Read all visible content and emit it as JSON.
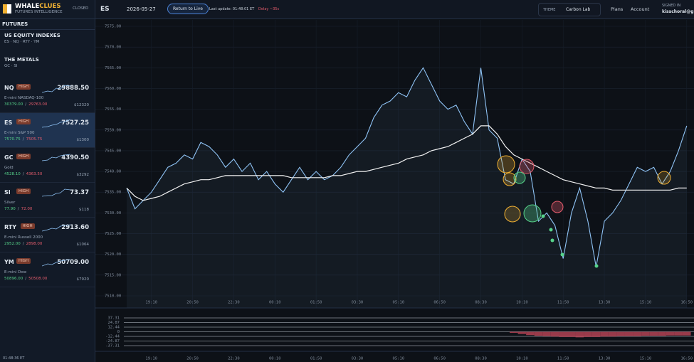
{
  "header": {
    "brand_a": "WHALE",
    "brand_b": "CLUES",
    "tagline": "FUTURES INTELLIGENCE",
    "status": "CLOSED",
    "symbol": "ES",
    "date": "2026-05-27",
    "return_button": "Return to Live",
    "last_update": "Last update: 01:48:01 ET",
    "delay": "Delay ~35s",
    "theme_label": "THEME",
    "theme": "Carbon Lab",
    "nav": [
      "Plans",
      "Account"
    ],
    "signed_in_label": "SIGNED IN",
    "user": "kisschoral@gmai"
  },
  "sidebar": {
    "section": "FUTURES",
    "groups": [
      {
        "title": "US EQUITY INDEXES",
        "symbols": "ES · NQ · RTY · YM"
      },
      {
        "title": "THE METALS",
        "symbols": "GC · SI"
      }
    ],
    "separator": "/",
    "tickers": [
      {
        "symbol": "NQ",
        "badge": "HIGH",
        "price": "29888.50",
        "name": "E-mini NASDAQ-100",
        "high": "30379.00",
        "low": "29763.00",
        "margin": "$12320"
      },
      {
        "symbol": "ES",
        "badge": "HIGH",
        "price": "7527.25",
        "name": "E-mini S&P 500",
        "high": "7570.75",
        "low": "7505.75",
        "margin": "$1300"
      },
      {
        "symbol": "GC",
        "badge": "HIGH",
        "price": "4390.50",
        "name": "Gold",
        "high": "4528.10",
        "low": "4363.50",
        "margin": "$3292"
      },
      {
        "symbol": "SI",
        "badge": "HIGH",
        "price": "73.37",
        "name": "Silver",
        "high": "77.90",
        "low": "72.00",
        "margin": "$118"
      },
      {
        "symbol": "RTY",
        "badge": "HIGH",
        "price": "2913.60",
        "name": "E-mini Russell 2000",
        "high": "2952.00",
        "low": "2898.00",
        "margin": "$1064"
      },
      {
        "symbol": "YM",
        "badge": "HIGH",
        "price": "50709.00",
        "name": "E-mini Dow",
        "high": "50896.00",
        "low": "50508.00",
        "margin": "$7920"
      }
    ],
    "clock": "01:48:36 ET"
  },
  "chart_data": [
    {
      "type": "line",
      "categories": [
        null,
        null,
        null,
        "19:10",
        null,
        null,
        null,
        null,
        "20:50",
        null,
        null,
        null,
        null,
        "22:30",
        null,
        null,
        null,
        null,
        "00:10",
        null,
        null,
        null,
        null,
        "01:50",
        null,
        null,
        null,
        null,
        "03:30",
        null,
        null,
        null,
        null,
        "05:10",
        null,
        null,
        null,
        null,
        "06:50",
        null,
        null,
        null,
        null,
        "08:30",
        null,
        null,
        null,
        null,
        "10:10",
        null,
        null,
        null,
        null,
        "11:50",
        null,
        null,
        null,
        null,
        "13:30",
        null,
        null,
        null,
        null,
        "15:10",
        null,
        null,
        null,
        null,
        "16:50"
      ],
      "series": [
        {
          "color": "#8fc3f5",
          "values": [
            7536,
            7531,
            7533,
            7535,
            7538,
            7541,
            7542,
            7544,
            7543,
            7547,
            7546,
            7544,
            7541,
            7543,
            7540,
            7542,
            7538,
            7540,
            7537,
            7535,
            7538,
            7541,
            7538,
            7540,
            7538,
            7539,
            7541,
            7544,
            7546,
            7548,
            7553,
            7556,
            7557,
            7559,
            7558,
            7562,
            7565,
            7561,
            7557,
            7555,
            7556,
            7552,
            7549,
            7565,
            7550,
            7548,
            7538,
            7537,
            7543,
            7540,
            7528,
            7530,
            7527,
            7519,
            7530,
            7536,
            7528,
            7517,
            7528,
            7530,
            7533,
            7537,
            7541,
            7540,
            7541,
            7537,
            7540,
            7545,
            7551
          ]
        },
        {
          "color": "#f2f2f2",
          "values": [
            7536,
            7534,
            7533,
            7533.5,
            7534,
            7535,
            7536,
            7537,
            7537.5,
            7538,
            7538,
            7538.5,
            7539,
            7539,
            7539,
            7539,
            7539,
            7539,
            7539,
            7539,
            7538.5,
            7538.5,
            7538.5,
            7538.5,
            7538.5,
            7539,
            7539,
            7539.5,
            7540,
            7540,
            7540.5,
            7541,
            7541.5,
            7542,
            7543,
            7543.5,
            7544,
            7545,
            7545.5,
            7546,
            7547,
            7548,
            7549,
            7551,
            7551,
            7549,
            7546,
            7544,
            7543,
            7542,
            7541,
            7540,
            7539,
            7538,
            7537.5,
            7537,
            7536.5,
            7536,
            7536,
            7535.5,
            7535.5,
            7535.5,
            7535.5,
            7535.5,
            7535.5,
            7535.5,
            7535.5,
            7536,
            7536
          ]
        }
      ],
      "ylim": [
        7509,
        7576
      ],
      "yticks": [
        {
          "value": 7510,
          "label": "7510.00"
        },
        {
          "value": 7515,
          "label": "7515.00"
        },
        {
          "value": 7520,
          "label": "7520.00"
        },
        {
          "value": 7525,
          "label": "7525.00"
        },
        {
          "value": 7530,
          "label": "7530.00"
        },
        {
          "value": 7535,
          "label": "7535.00"
        },
        {
          "value": 7540,
          "label": "7540.00"
        },
        {
          "value": 7545,
          "label": "7545.00"
        },
        {
          "value": 7550,
          "label": "7550.00"
        },
        {
          "value": 7555,
          "label": "7555.00"
        },
        {
          "value": 7560,
          "label": "7560.00"
        },
        {
          "value": 7565,
          "label": "7565.00"
        },
        {
          "value": 7570,
          "label": "7570.00"
        },
        {
          "value": 7575,
          "label": "7575.00"
        }
      ],
      "grid": true
    },
    {
      "type": "bar",
      "color": "#c8485c",
      "categories": [
        null,
        null,
        null,
        "19:10",
        null,
        null,
        null,
        null,
        "20:50",
        null,
        null,
        null,
        null,
        "22:30",
        null,
        null,
        null,
        null,
        "00:10",
        null,
        null,
        null,
        null,
        "01:50",
        null,
        null,
        null,
        null,
        "03:30",
        null,
        null,
        null,
        null,
        "05:10",
        null,
        null,
        null,
        null,
        "06:50",
        null,
        null,
        null,
        null,
        "08:30",
        null,
        null,
        null,
        null,
        "10:10",
        null,
        null,
        null,
        null,
        "11:50",
        null,
        null,
        null,
        null,
        "13:30",
        null,
        null,
        null,
        null,
        "15:10",
        null,
        null,
        null,
        null,
        "16:50"
      ],
      "values": [
        0,
        0,
        0,
        0,
        0,
        0,
        0,
        0,
        0,
        0,
        0,
        0,
        0,
        0,
        0,
        0,
        0,
        0,
        0,
        0,
        0,
        0,
        0,
        0,
        0,
        0,
        0,
        0,
        0,
        0,
        0,
        0,
        0,
        0,
        0,
        0,
        0,
        0,
        0,
        0,
        0,
        0,
        0,
        0,
        0,
        0,
        0,
        -3,
        -6,
        -9,
        -11,
        -12,
        -13,
        -14,
        -14,
        -15,
        -14,
        -14,
        -13,
        -13,
        -12,
        -12,
        -12,
        -11,
        -11,
        -11,
        -10,
        -10,
        -10
      ],
      "ylim": [
        -37.31,
        37.31
      ],
      "yticks": [
        37.31,
        24.87,
        12.44,
        0,
        -12.44,
        -24.87,
        -37.31
      ]
    }
  ]
}
